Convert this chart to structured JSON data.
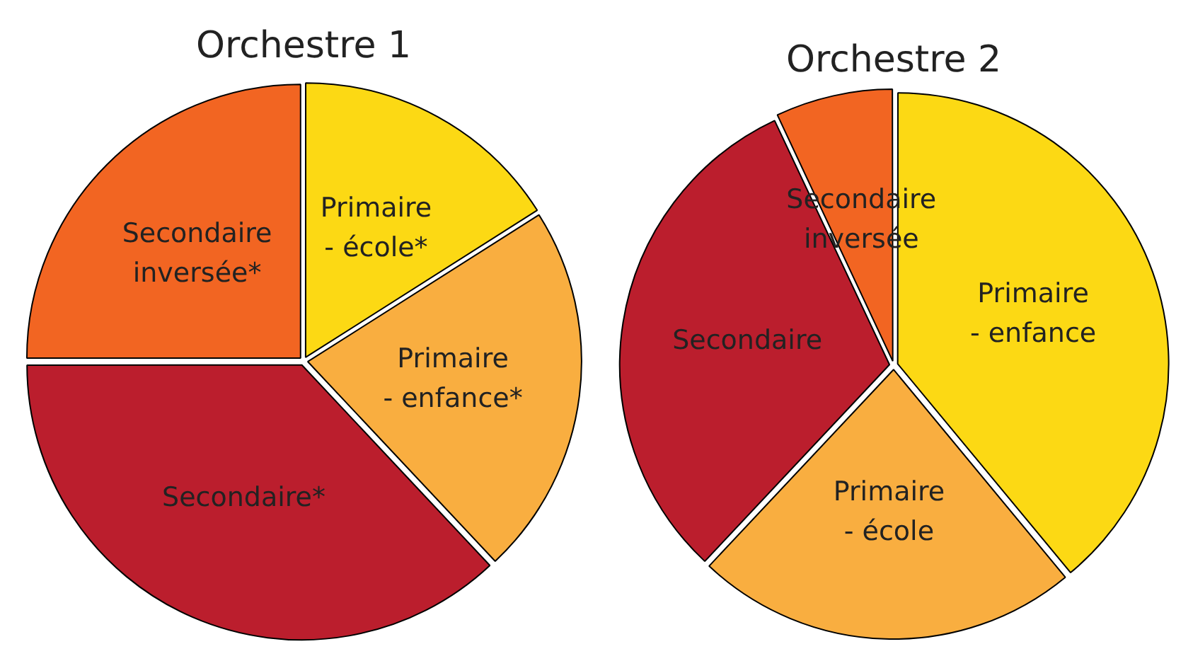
{
  "chart_data": [
    {
      "type": "pie",
      "title": "Orchestre 1",
      "categories": [
        "Primaire - école*",
        "Primaire - enfance*",
        "Secondaire*",
        "Secondaire inversée*"
      ],
      "values": [
        16,
        22,
        37,
        25
      ],
      "colors": [
        "#fcd914",
        "#f9ae40",
        "#bb1e2d",
        "#f26522"
      ],
      "legend": false
    },
    {
      "type": "pie",
      "title": "Orchestre 2",
      "categories": [
        "Primaire - enfance",
        "Primaire - école",
        "Secondaire",
        "Secondaire inversée"
      ],
      "values": [
        39,
        23,
        31,
        7
      ],
      "colors": [
        "#fcd914",
        "#f9ae40",
        "#bb1e2d",
        "#f26522"
      ],
      "legend": false
    }
  ]
}
